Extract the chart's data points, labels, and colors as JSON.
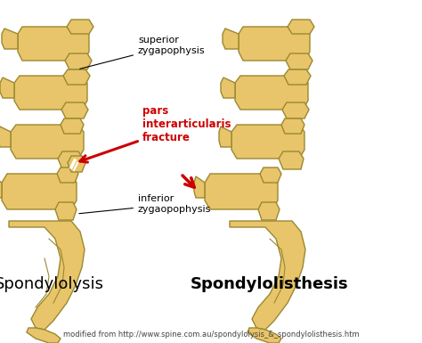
{
  "bg_color": "#ffffff",
  "bone_fill": "#e8c56a",
  "bone_edge": "#9b8830",
  "arrow_color": "#cc0000",
  "line_color": "#000000",
  "title1": "Spondylolysis",
  "title2": "Spondylolisthesis",
  "label_superior": "superior\nzygapophysis",
  "label_pars": "pars\ninterarticularis\nfracture",
  "label_inferior": "inferior\nzygaopophysis",
  "label_source": "modified from http://www.spine.com.au/spondylolysis_&_spondylolisthesis.htm",
  "title_fontsize": 13,
  "label_fontsize": 8,
  "source_fontsize": 6
}
